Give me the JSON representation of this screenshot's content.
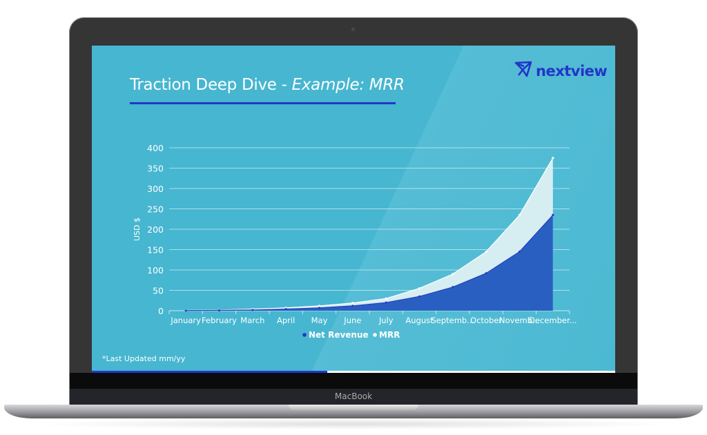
{
  "device": {
    "label": "MacBook"
  },
  "slide": {
    "title_main": "Traction Deep Dive - ",
    "title_italic": "Example: MRR",
    "logo": {
      "icon": "paper-plane-icon",
      "text": "nextview"
    },
    "footnote": "*Last Updated mm/yy",
    "progress_percent": 45
  },
  "colors": {
    "background": "#47b6d0",
    "accent": "#2236c9",
    "net_revenue": "#2a5fc2",
    "mrr": "#d6eef2"
  },
  "chart_data": {
    "type": "area",
    "title": "",
    "xlabel": "",
    "ylabel": "USD $",
    "ylim": [
      0,
      400
    ],
    "yticks": [
      0,
      50,
      100,
      150,
      200,
      250,
      300,
      350,
      400
    ],
    "grid": true,
    "legend_position": "bottom",
    "categories": [
      "January",
      "February",
      "March",
      "April",
      "May",
      "June",
      "July",
      "August",
      "September",
      "October",
      "November",
      "December"
    ],
    "category_labels_displayed": [
      "January",
      "February",
      "March",
      "April",
      "May",
      "June",
      "July",
      "August",
      "Septemb...",
      "October",
      "Novemb...",
      "December..."
    ],
    "series": [
      {
        "name": "Net Revenue",
        "color": "#2a5fc2",
        "values": [
          0.5,
          1,
          2,
          4,
          7,
          12,
          20,
          35,
          58,
          92,
          145,
          235
        ]
      },
      {
        "name": "MRR",
        "color": "#d6eef2",
        "values": [
          1,
          2,
          4,
          7,
          12,
          19,
          30,
          55,
          90,
          145,
          235,
          375
        ]
      }
    ]
  }
}
